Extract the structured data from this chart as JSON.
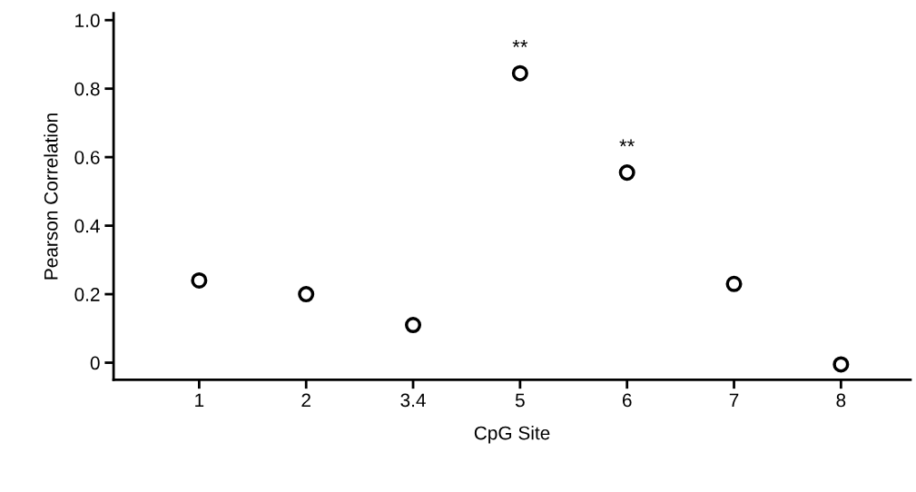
{
  "chart_data": {
    "type": "scatter",
    "xlabel": "CpG Site",
    "ylabel": "Pearson Correlation",
    "categories": [
      "1",
      "2",
      "3.4",
      "5",
      "6",
      "7",
      "8"
    ],
    "series": [
      {
        "color": "#000000",
        "values": [
          0.24,
          0.2,
          0.11,
          0.845,
          0.555,
          0.23,
          -0.005
        ]
      }
    ],
    "ylim": [
      -0.05,
      1.02
    ],
    "yticks": [
      0,
      0.2,
      0.4,
      0.6,
      0.8,
      {
        "value": 1.0,
        "label": "1.0"
      }
    ],
    "annotations": [
      {
        "text": "**",
        "x": "5",
        "y": 0.845
      },
      {
        "text": "**",
        "x": "6",
        "y": 0.555
      }
    ],
    "marker": "circle",
    "grid": false,
    "legend": false
  }
}
